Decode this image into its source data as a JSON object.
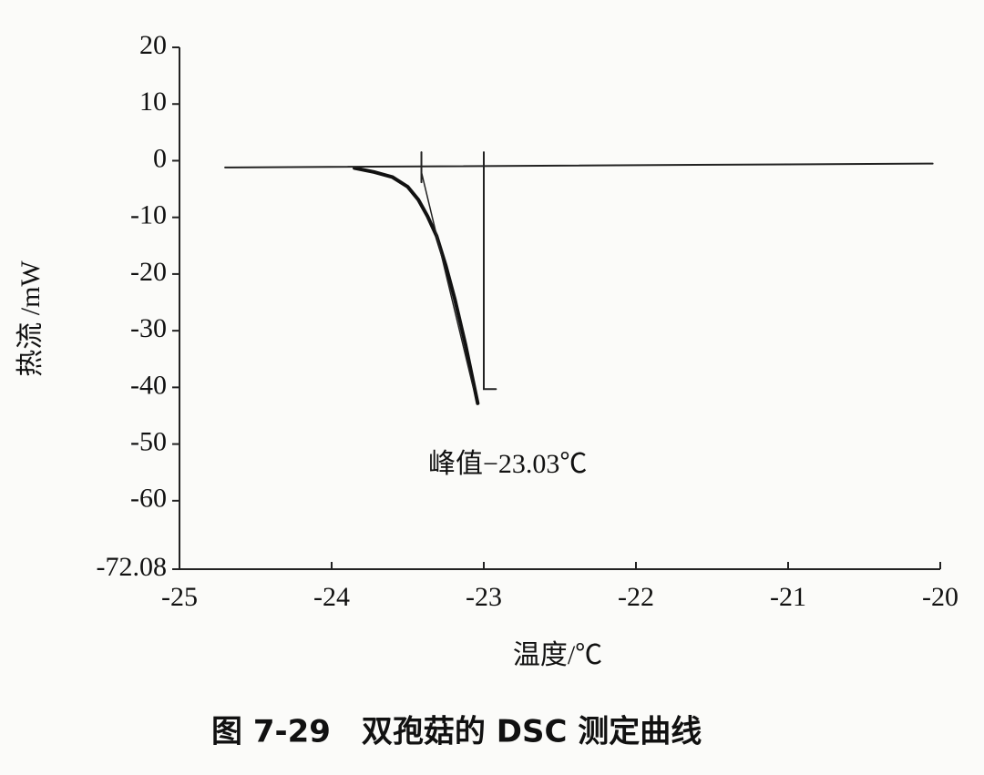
{
  "chart_data": {
    "type": "line",
    "xlabel": "温度/℃",
    "ylabel": "热流 /mW",
    "caption": "图 7-29　双孢菇的 DSC 测定曲线",
    "annotation": "峰值−23.03℃",
    "xlim": [
      -25,
      -20
    ],
    "xticks": [
      -25,
      -24,
      -23,
      -22,
      -21,
      -20
    ],
    "ylim": [
      -72.08,
      20
    ],
    "yticks": [
      20,
      10,
      0,
      -10,
      -20,
      -30,
      -40,
      -50,
      -60,
      -72.08
    ],
    "series": [
      {
        "color": "#111111",
        "width": 4,
        "x": [
          -23.85,
          -23.72,
          -23.6,
          -23.5,
          -23.43,
          -23.37,
          -23.31,
          -23.25,
          -23.19,
          -23.12,
          -23.04
        ],
        "values": [
          -1.3,
          -2.0,
          -2.9,
          -4.6,
          -6.9,
          -9.8,
          -13.3,
          -18.5,
          -24.5,
          -32.5,
          -42.8
        ]
      },
      {
        "color": "#222222",
        "width": 2,
        "x": [
          -24.7,
          -20.05
        ],
        "values": [
          -1.2,
          -0.5
        ]
      },
      {
        "color": "#222222",
        "width": 1.5,
        "x": [
          -23.41,
          -23.07
        ],
        "values": [
          -2,
          -40
        ]
      },
      {
        "color": "#222222",
        "width": 2,
        "x": [
          -23.41,
          -23.41
        ],
        "values": [
          1.5,
          -3.8
        ]
      },
      {
        "color": "#222222",
        "width": 2,
        "x": [
          -23.0,
          -23.0,
          -22.92
        ],
        "values": [
          1.5,
          -40.3,
          -40.3
        ]
      }
    ]
  }
}
